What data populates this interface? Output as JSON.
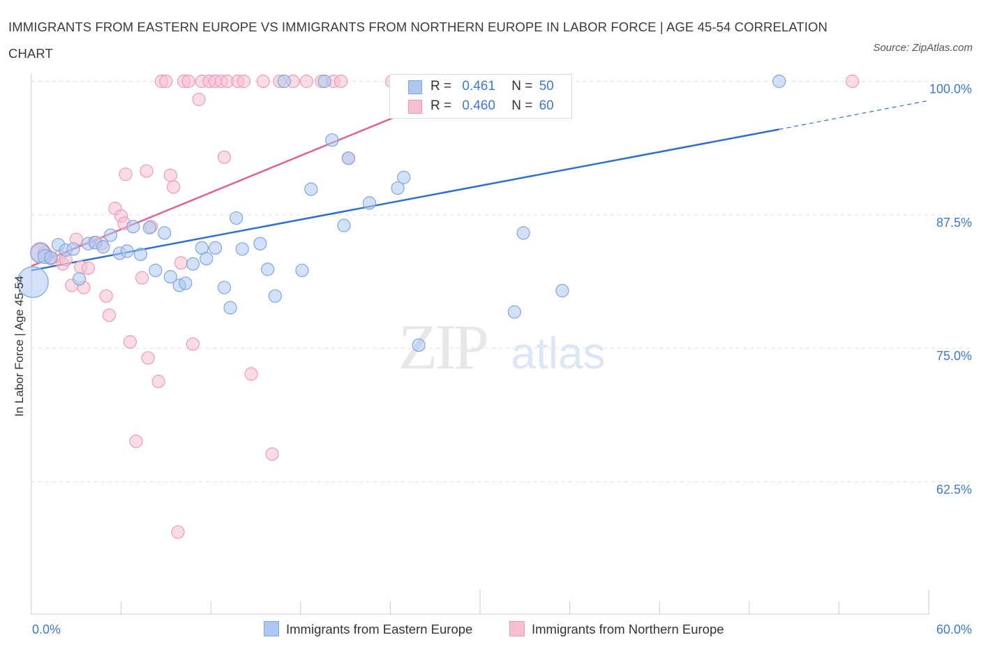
{
  "title": "IMMIGRANTS FROM EASTERN EUROPE VS IMMIGRANTS FROM NORTHERN EUROPE IN LABOR FORCE | AGE 45-54 CORRELATION CHART",
  "source": "Source: ZipAtlas.com",
  "watermark": {
    "zip": "ZIP",
    "atlas": "atlas"
  },
  "legend": {
    "r_label": "R =",
    "n_label": "N =",
    "rows": [
      {
        "r": "0.461",
        "n": "50"
      },
      {
        "r": "0.460",
        "n": "60"
      }
    ]
  },
  "colors": {
    "blue_fill": "#adc8f0",
    "blue_stroke": "#7ea6e0",
    "blue_line": "#2f6fce",
    "pink_fill": "#f6bfd0",
    "pink_stroke": "#ef9ab5",
    "pink_line": "#e0628f",
    "axis_text": "#3d78d8",
    "grid": "#dcdcdc"
  },
  "chart_data": {
    "type": "scatter",
    "title": "IMMIGRANTS FROM EASTERN EUROPE VS IMMIGRANTS FROM NORTHERN EUROPE IN LABOR FORCE | AGE 45-54 CORRELATION CHART",
    "xlabel": "",
    "ylabel": "In Labor Force | Age 45-54",
    "xlim": [
      0,
      60
    ],
    "ylim": [
      50,
      100
    ],
    "x_tick_labels": [
      "0.0%",
      "60.0%"
    ],
    "y_ticks": [
      62.5,
      75.0,
      87.5,
      100.0
    ],
    "y_tick_labels": [
      "62.5%",
      "75.0%",
      "87.5%",
      "100.0%"
    ],
    "grid": true,
    "legend_position": "top-center",
    "series": [
      {
        "name": "Immigrants from Eastern Europe",
        "R": 0.461,
        "N": 50,
        "trend": {
          "x": [
            0,
            50
          ],
          "y": [
            82.3,
            95.5
          ],
          "dashed_to_x": 60,
          "dashed_to_y": 98.2
        },
        "points": [
          [
            0.1,
            81.2,
            22
          ],
          [
            0.6,
            83.9,
            14
          ],
          [
            0.9,
            83.6,
            10
          ],
          [
            1.3,
            83.5,
            9
          ],
          [
            1.8,
            84.7,
            9
          ],
          [
            2.3,
            84.2,
            9
          ],
          [
            2.8,
            84.3,
            9
          ],
          [
            3.2,
            81.5,
            9
          ],
          [
            3.8,
            84.8,
            9
          ],
          [
            4.3,
            84.9,
            9
          ],
          [
            4.8,
            84.5,
            9
          ],
          [
            5.3,
            85.6,
            9
          ],
          [
            5.9,
            83.9,
            9
          ],
          [
            6.4,
            84.1,
            9
          ],
          [
            6.8,
            86.4,
            9
          ],
          [
            7.3,
            83.8,
            9
          ],
          [
            7.9,
            86.3,
            9
          ],
          [
            8.3,
            82.3,
            9
          ],
          [
            8.9,
            85.8,
            9
          ],
          [
            9.3,
            81.7,
            9
          ],
          [
            9.9,
            80.9,
            9
          ],
          [
            10.3,
            81.1,
            9
          ],
          [
            10.8,
            82.9,
            9
          ],
          [
            11.4,
            84.4,
            9
          ],
          [
            11.7,
            83.4,
            9
          ],
          [
            12.3,
            84.4,
            9
          ],
          [
            12.9,
            80.7,
            9
          ],
          [
            13.3,
            78.8,
            9
          ],
          [
            13.7,
            87.2,
            9
          ],
          [
            14.1,
            84.3,
            9
          ],
          [
            15.3,
            84.8,
            9
          ],
          [
            15.8,
            82.4,
            9
          ],
          [
            16.3,
            79.9,
            9
          ],
          [
            16.9,
            100.0,
            9
          ],
          [
            18.1,
            82.3,
            9
          ],
          [
            18.7,
            89.9,
            9
          ],
          [
            19.6,
            100.0,
            9
          ],
          [
            20.1,
            94.5,
            9
          ],
          [
            20.9,
            86.5,
            9
          ],
          [
            21.2,
            92.8,
            9
          ],
          [
            22.6,
            88.6,
            9
          ],
          [
            24.5,
            90.0,
            9
          ],
          [
            24.9,
            91.0,
            9
          ],
          [
            25.9,
            75.3,
            9
          ],
          [
            25.9,
            100.0,
            9
          ],
          [
            29.7,
            100.0,
            9
          ],
          [
            32.3,
            78.4,
            9
          ],
          [
            32.9,
            85.8,
            9
          ],
          [
            35.5,
            80.4,
            9
          ],
          [
            50.0,
            100.0,
            9
          ]
        ]
      },
      {
        "name": "Immigrants from Northern Europe",
        "R": 0.46,
        "N": 60,
        "trend": {
          "x": [
            0,
            26.3
          ],
          "y": [
            82.7,
            97.8
          ]
        },
        "points": [
          [
            0.6,
            84.0,
            14
          ],
          [
            0.9,
            83.9,
            10
          ],
          [
            1.3,
            83.4,
            9
          ],
          [
            1.9,
            83.6,
            9
          ],
          [
            2.1,
            82.9,
            9
          ],
          [
            2.3,
            83.3,
            9
          ],
          [
            2.7,
            80.9,
            9
          ],
          [
            3.0,
            85.2,
            9
          ],
          [
            3.3,
            82.6,
            9
          ],
          [
            3.5,
            80.7,
            9
          ],
          [
            3.8,
            82.5,
            9
          ],
          [
            4.2,
            84.9,
            9
          ],
          [
            4.7,
            84.8,
            9
          ],
          [
            5.0,
            79.9,
            9
          ],
          [
            5.2,
            78.1,
            9
          ],
          [
            5.6,
            88.1,
            9
          ],
          [
            6.0,
            87.4,
            9
          ],
          [
            6.2,
            86.7,
            9
          ],
          [
            6.3,
            91.3,
            9
          ],
          [
            6.6,
            75.6,
            9
          ],
          [
            7.0,
            66.3,
            9
          ],
          [
            7.4,
            81.6,
            9
          ],
          [
            7.7,
            91.6,
            9
          ],
          [
            7.8,
            74.1,
            9
          ],
          [
            8.0,
            86.4,
            9
          ],
          [
            8.5,
            71.9,
            9
          ],
          [
            8.7,
            100.0,
            9
          ],
          [
            9.0,
            100.0,
            9
          ],
          [
            9.3,
            91.2,
            9
          ],
          [
            9.5,
            90.1,
            9
          ],
          [
            9.8,
            57.8,
            9
          ],
          [
            10.0,
            83.0,
            9
          ],
          [
            10.2,
            100.0,
            9
          ],
          [
            10.5,
            100.0,
            9
          ],
          [
            10.8,
            75.4,
            9
          ],
          [
            11.2,
            98.3,
            9
          ],
          [
            11.4,
            100.0,
            9
          ],
          [
            11.9,
            100.0,
            9
          ],
          [
            12.3,
            100.0,
            9
          ],
          [
            12.7,
            100.0,
            9
          ],
          [
            12.9,
            92.9,
            9
          ],
          [
            13.1,
            100.0,
            9
          ],
          [
            13.8,
            100.0,
            9
          ],
          [
            14.2,
            100.0,
            9
          ],
          [
            14.7,
            72.6,
            9
          ],
          [
            15.5,
            100.0,
            9
          ],
          [
            16.1,
            65.1,
            9
          ],
          [
            16.6,
            100.0,
            9
          ],
          [
            17.5,
            100.0,
            9
          ],
          [
            18.4,
            100.0,
            9
          ],
          [
            19.4,
            100.0,
            9
          ],
          [
            20.2,
            100.0,
            9
          ],
          [
            20.7,
            100.0,
            9
          ],
          [
            21.2,
            92.8,
            9
          ],
          [
            24.1,
            100.0,
            9
          ],
          [
            28.1,
            100.0,
            9
          ],
          [
            29.7,
            100.0,
            9
          ],
          [
            31.8,
            100.0,
            9
          ],
          [
            34.1,
            100.0,
            9
          ],
          [
            54.9,
            100.0,
            9
          ]
        ]
      }
    ]
  }
}
